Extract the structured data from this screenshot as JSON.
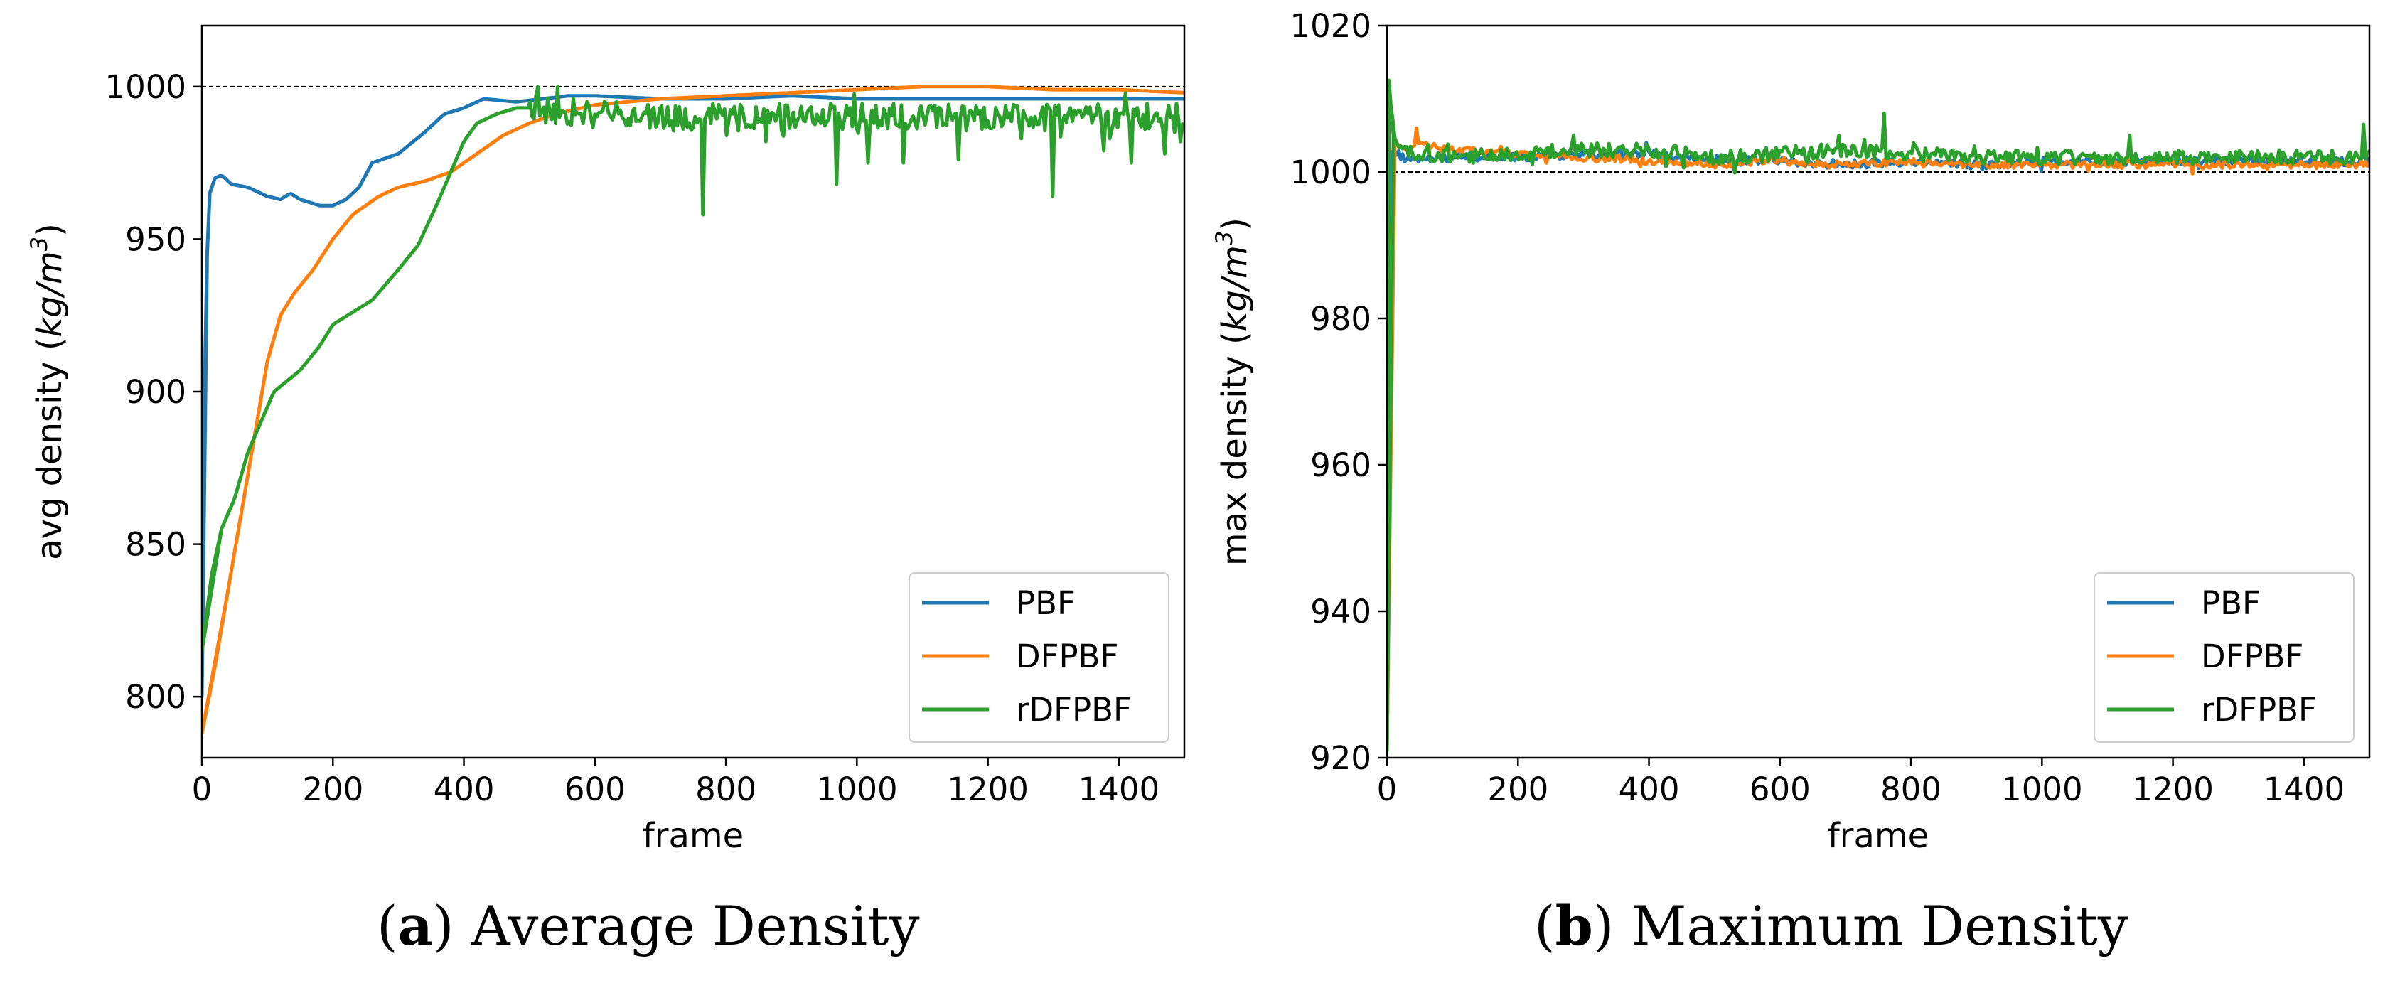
{
  "captions": {
    "a": {
      "letter": "a",
      "text": "Average Density"
    },
    "b": {
      "letter": "b",
      "text": "Maximum Density"
    }
  },
  "colors": {
    "PBF": "#1f77b4",
    "DFPBF": "#ff7f0e",
    "rDFPBF": "#2ca02c",
    "reference": "#000000"
  },
  "chart_data": [
    {
      "id": "a",
      "type": "line",
      "title": "",
      "xlabel": "frame",
      "ylabel_prefix": "avg density (",
      "ylabel_unit": "kg/m",
      "ylabel_exp": "3",
      "ylabel_suffix": ")",
      "xlim": [
        0,
        1500
      ],
      "ylim": [
        780,
        1020
      ],
      "xticks": [
        0,
        200,
        400,
        600,
        800,
        1000,
        1200,
        1400
      ],
      "yticks": [
        800,
        850,
        900,
        950,
        1000
      ],
      "reference_line": 1000,
      "legend_position": "lower-right",
      "series": [
        {
          "name": "PBF",
          "noise": 0,
          "spikes": [],
          "points": [
            [
              0,
              800
            ],
            [
              4,
              900
            ],
            [
              8,
              945
            ],
            [
              12,
              965
            ],
            [
              20,
              970
            ],
            [
              30,
              971
            ],
            [
              45,
              968
            ],
            [
              70,
              967
            ],
            [
              100,
              964
            ],
            [
              120,
              963
            ],
            [
              135,
              965
            ],
            [
              150,
              963
            ],
            [
              180,
              961
            ],
            [
              200,
              961
            ],
            [
              220,
              963
            ],
            [
              240,
              967
            ],
            [
              260,
              975
            ],
            [
              300,
              978
            ],
            [
              340,
              985
            ],
            [
              370,
              991
            ],
            [
              400,
              993
            ],
            [
              430,
              996
            ],
            [
              480,
              995
            ],
            [
              520,
              996
            ],
            [
              560,
              997
            ],
            [
              600,
              997
            ],
            [
              700,
              996
            ],
            [
              800,
              996
            ],
            [
              900,
              997
            ],
            [
              1000,
              996
            ],
            [
              1200,
              996
            ],
            [
              1500,
              996
            ]
          ]
        },
        {
          "name": "DFPBF",
          "noise": 0,
          "spikes": [],
          "points": [
            [
              0,
              788
            ],
            [
              20,
              810
            ],
            [
              40,
              835
            ],
            [
              60,
              860
            ],
            [
              80,
              885
            ],
            [
              100,
              910
            ],
            [
              120,
              925
            ],
            [
              140,
              932
            ],
            [
              170,
              940
            ],
            [
              200,
              950
            ],
            [
              230,
              958
            ],
            [
              270,
              964
            ],
            [
              300,
              967
            ],
            [
              340,
              969
            ],
            [
              380,
              972
            ],
            [
              420,
              978
            ],
            [
              460,
              984
            ],
            [
              500,
              988
            ],
            [
              540,
              991
            ],
            [
              600,
              994
            ],
            [
              700,
              996
            ],
            [
              800,
              997
            ],
            [
              900,
              998
            ],
            [
              1000,
              999
            ],
            [
              1100,
              1000
            ],
            [
              1200,
              1000
            ],
            [
              1300,
              999
            ],
            [
              1400,
              999
            ],
            [
              1500,
              998
            ]
          ]
        },
        {
          "name": "rDFPBF",
          "noise": 4.5,
          "noise_start": 500,
          "spikes": [
            [
              764,
              958
            ],
            [
              968,
              968
            ],
            [
              1018,
              975
            ],
            [
              1072,
              975
            ],
            [
              1155,
              976
            ],
            [
              1300,
              964
            ],
            [
              1377,
              979
            ],
            [
              1420,
              975
            ],
            [
              1470,
              978
            ],
            [
              1495,
              982
            ],
            [
              800,
              984
            ],
            [
              860,
              982
            ],
            [
              1250,
              983
            ]
          ],
          "points": [
            [
              0,
              815
            ],
            [
              15,
              840
            ],
            [
              30,
              855
            ],
            [
              50,
              865
            ],
            [
              70,
              880
            ],
            [
              90,
              890
            ],
            [
              110,
              900
            ],
            [
              150,
              907
            ],
            [
              180,
              915
            ],
            [
              200,
              922
            ],
            [
              230,
              926
            ],
            [
              260,
              930
            ],
            [
              280,
              935
            ],
            [
              300,
              940
            ],
            [
              330,
              948
            ],
            [
              360,
              962
            ],
            [
              380,
              972
            ],
            [
              400,
              982
            ],
            [
              420,
              988
            ],
            [
              450,
              991
            ],
            [
              480,
              993
            ],
            [
              500,
              993
            ],
            [
              550,
              992
            ],
            [
              600,
              991
            ],
            [
              700,
              990
            ],
            [
              800,
              990
            ],
            [
              1000,
              990
            ],
            [
              1500,
              990
            ]
          ]
        }
      ]
    },
    {
      "id": "b",
      "type": "line",
      "title": "",
      "xlabel": "frame",
      "ylabel_prefix": "max density (",
      "ylabel_unit": "kg/m",
      "ylabel_exp": "3",
      "ylabel_suffix": ")",
      "xlim": [
        0,
        1500
      ],
      "ylim": [
        920,
        1020
      ],
      "xticks": [
        0,
        200,
        400,
        600,
        800,
        1000,
        1200,
        1400
      ],
      "yticks": [
        920,
        940,
        960,
        980,
        1000,
        1020
      ],
      "reference_line": 1000,
      "legend_position": "lower-right",
      "series": [
        {
          "name": "PBF",
          "noise": 0.6,
          "noise_start": 15,
          "spikes": [
            [
              395,
              1004
            ]
          ],
          "points": [
            [
              0,
              921
            ],
            [
              4,
              1002
            ],
            [
              10,
              1003
            ],
            [
              30,
              1001.5
            ],
            [
              100,
              1002
            ],
            [
              200,
              1002
            ],
            [
              300,
              1002.5
            ],
            [
              400,
              1002.5
            ],
            [
              500,
              1001.5
            ],
            [
              600,
              1001.5
            ],
            [
              700,
              1001
            ],
            [
              800,
              1001.5
            ],
            [
              900,
              1001
            ],
            [
              1000,
              1001.5
            ],
            [
              1500,
              1001.5
            ]
          ]
        },
        {
          "name": "DFPBF",
          "noise": 0.5,
          "noise_start": 60,
          "spikes": [
            [
              45,
              1006
            ],
            [
              60,
              1004
            ]
          ],
          "points": [
            [
              0,
              921
            ],
            [
              6,
              985
            ],
            [
              12,
              1004
            ],
            [
              30,
              1003
            ],
            [
              50,
              1004
            ],
            [
              100,
              1003
            ],
            [
              200,
              1002.5
            ],
            [
              300,
              1002
            ],
            [
              400,
              1001.5
            ],
            [
              500,
              1001
            ],
            [
              600,
              1001.5
            ],
            [
              700,
              1001
            ],
            [
              800,
              1001.5
            ],
            [
              900,
              1001
            ],
            [
              1000,
              1001
            ],
            [
              1500,
              1001
            ]
          ]
        },
        {
          "name": "rDFPBF",
          "noise": 1.0,
          "noise_start": 20,
          "spikes": [
            [
              2,
              1012.5
            ],
            [
              8,
              1007
            ],
            [
              285,
              1005
            ],
            [
              690,
              1005
            ],
            [
              760,
              1008
            ],
            [
              1135,
              1005
            ],
            [
              1490,
              1006.5
            ]
          ],
          "points": [
            [
              0,
              921
            ],
            [
              3,
              1012
            ],
            [
              10,
              1005
            ],
            [
              20,
              1003
            ],
            [
              100,
              1002
            ],
            [
              200,
              1002.5
            ],
            [
              300,
              1003
            ],
            [
              400,
              1003
            ],
            [
              500,
              1002
            ],
            [
              600,
              1002.5
            ],
            [
              700,
              1003
            ],
            [
              800,
              1002.5
            ],
            [
              900,
              1002
            ],
            [
              1000,
              1002
            ],
            [
              1500,
              1002
            ]
          ]
        }
      ]
    }
  ]
}
